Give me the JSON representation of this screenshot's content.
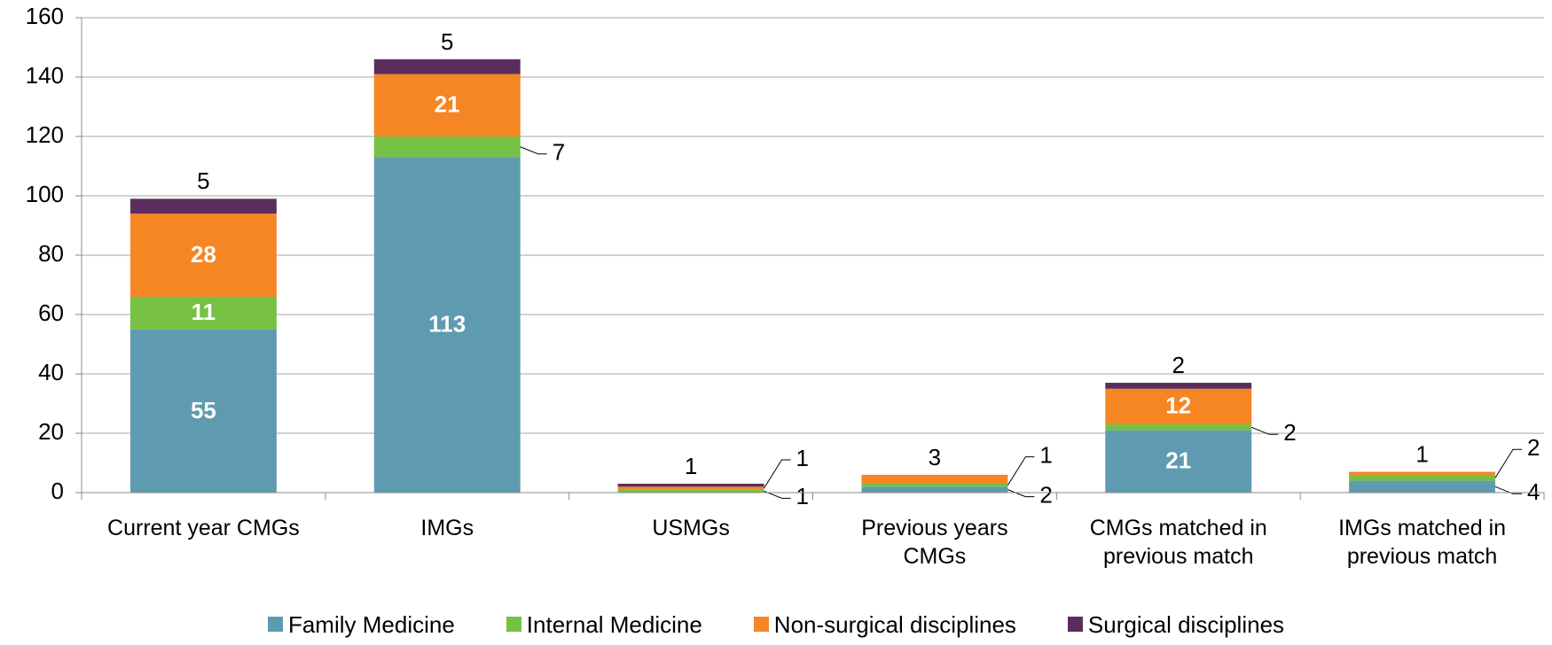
{
  "chart_data": {
    "type": "stacked_bar",
    "categories": [
      "Current year CMGs",
      "IMGs",
      "USMGs",
      "Previous years CMGs",
      "CMGs matched in previous match",
      "IMGs matched in previous match"
    ],
    "series": [
      {
        "name": "Family Medicine",
        "color": "#5f9bb0",
        "values": [
          55,
          113,
          0,
          2,
          21,
          4
        ]
      },
      {
        "name": "Internal Medicine",
        "color": "#76c043",
        "values": [
          11,
          7,
          1,
          1,
          2,
          2
        ]
      },
      {
        "name": "Non-surgical disciplines",
        "color": "#f68524",
        "values": [
          28,
          21,
          1,
          3,
          12,
          1
        ]
      },
      {
        "name": "Surgical disciplines",
        "color": "#5b2d5c",
        "values": [
          5,
          5,
          1,
          0,
          2,
          0
        ]
      }
    ],
    "ylim": [
      0,
      160
    ],
    "yticks": [
      0,
      20,
      40,
      60,
      80,
      100,
      120,
      140,
      160
    ],
    "grid": true,
    "legend": "bottom"
  }
}
